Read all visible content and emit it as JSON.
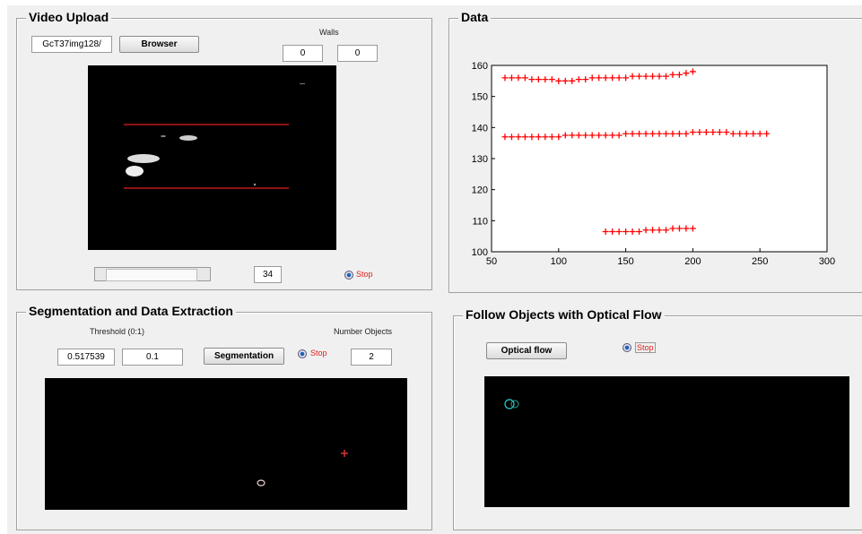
{
  "video_upload": {
    "title": "Video Upload",
    "file_name": "GcT37img128/",
    "browse_button": "Browser",
    "walls_label": "Walls",
    "walls": [
      "0",
      "0"
    ],
    "frame": "34",
    "stop": "Stop"
  },
  "data_panel": {
    "title": "Data",
    "chart": {
      "type": "scatter",
      "color": "#ff0000",
      "marker": "+",
      "grid": false,
      "xlim": [
        50,
        300
      ],
      "xticks": [
        50,
        100,
        150,
        200,
        250,
        300
      ],
      "ylim": [
        100,
        160
      ],
      "yticks": [
        100,
        110,
        120,
        130,
        140,
        150,
        160
      ],
      "series": [
        {
          "x": [
            60,
            65,
            70,
            75,
            80,
            85,
            90,
            95,
            100,
            105,
            110,
            115,
            120,
            125,
            130,
            135,
            140,
            145,
            150,
            155,
            160,
            165,
            170,
            175,
            180,
            185,
            190,
            195,
            200
          ],
          "values": [
            156,
            156,
            156,
            156,
            155.5,
            155.5,
            155.5,
            155.5,
            155,
            155,
            155,
            155.5,
            155.5,
            156,
            156,
            156,
            156,
            156,
            156,
            156.5,
            156.5,
            156.5,
            156.5,
            156.5,
            156.5,
            157,
            157,
            157.5,
            158
          ]
        },
        {
          "x": [
            60,
            65,
            70,
            75,
            80,
            85,
            90,
            95,
            100,
            105,
            110,
            115,
            120,
            125,
            130,
            135,
            140,
            145,
            150,
            155,
            160,
            165,
            170,
            175,
            180,
            185,
            190,
            195,
            200,
            205,
            210,
            215,
            220,
            225,
            230,
            235,
            240,
            245,
            250,
            255
          ],
          "values": [
            137,
            137,
            137,
            137,
            137,
            137,
            137,
            137,
            137,
            137.5,
            137.5,
            137.5,
            137.5,
            137.5,
            137.5,
            137.5,
            137.5,
            137.5,
            138,
            138,
            138,
            138,
            138,
            138,
            138,
            138,
            138,
            138,
            138.5,
            138.5,
            138.5,
            138.5,
            138.5,
            138.5,
            138,
            138,
            138,
            138,
            138,
            138
          ]
        },
        {
          "x": [
            135,
            140,
            145,
            150,
            155,
            160,
            165,
            170,
            175,
            180,
            185,
            190,
            195,
            200
          ],
          "values": [
            106.5,
            106.5,
            106.5,
            106.5,
            106.5,
            106.5,
            107,
            107,
            107,
            107,
            107.5,
            107.5,
            107.5,
            107.5
          ]
        }
      ]
    }
  },
  "segmentation": {
    "title": "Segmentation and  Data Extraction",
    "threshold_label": "Threshold (0:1)",
    "thresholds": [
      "0.517539",
      "0.1"
    ],
    "button": "Segmentation",
    "stop": "Stop",
    "number_objects_label": "Number Objects",
    "number_objects": "2"
  },
  "optical_flow": {
    "title": "Follow Objects with Optical Flow",
    "button": "Optical flow",
    "stop": "Stop"
  }
}
